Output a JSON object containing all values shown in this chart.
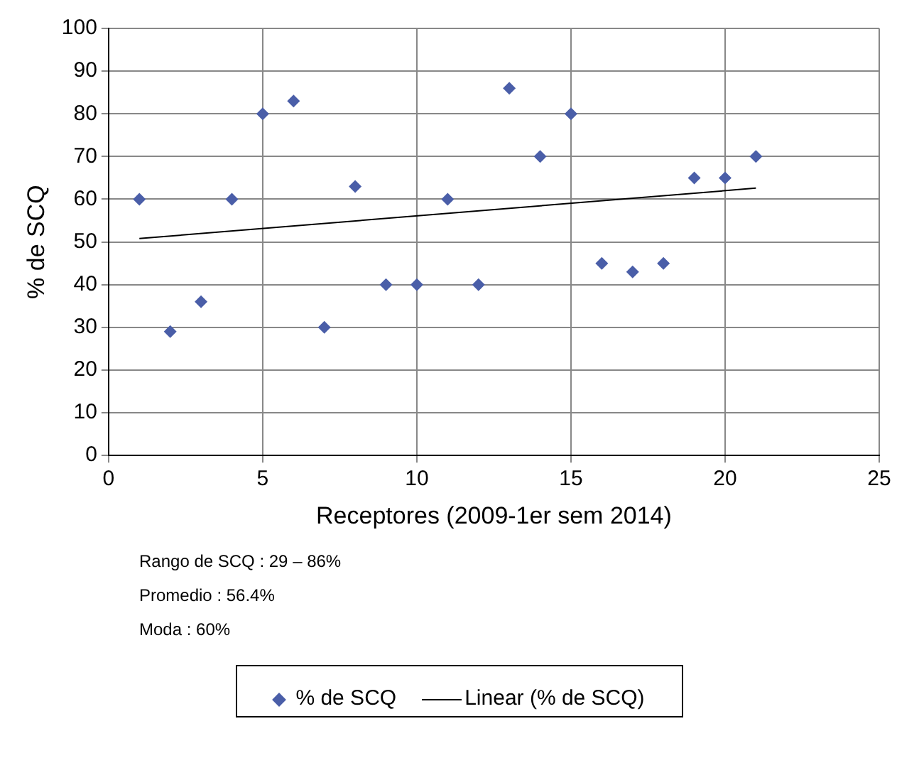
{
  "chart_data": {
    "type": "scatter",
    "xlabel": "Receptores (2009-1er sem 2014)",
    "ylabel": "% de SCQ",
    "xlim": [
      0,
      25
    ],
    "xticks": [
      0,
      5,
      10,
      15,
      20,
      25
    ],
    "ylim": [
      0,
      100
    ],
    "yticks": [
      0,
      10,
      20,
      30,
      40,
      50,
      60,
      70,
      80,
      90,
      100
    ],
    "grid": true,
    "legend": "bottom",
    "marker": "diamond",
    "series": [
      {
        "name": "% de SCQ",
        "color": "#4a5ea8",
        "x": [
          1,
          2,
          3,
          4,
          5,
          6,
          7,
          8,
          9,
          10,
          11,
          12,
          13,
          14,
          15,
          16,
          17,
          18,
          19,
          20,
          21
        ],
        "values": [
          60,
          29,
          36,
          60,
          80,
          83,
          30,
          63,
          40,
          40,
          60,
          40,
          86,
          70,
          80,
          45,
          43,
          45,
          65,
          65,
          70
        ]
      },
      {
        "name": "Linear (% de SCQ)",
        "type": "line",
        "color": "#000000",
        "marker": "none",
        "line_style": "solid",
        "x": [
          1,
          21
        ],
        "values": [
          50.8,
          62.6
        ]
      }
    ],
    "annotations": [
      "Rango de SCQ : 29 – 86%",
      "Promedio : 56.4%",
      "Moda : 60%"
    ]
  }
}
